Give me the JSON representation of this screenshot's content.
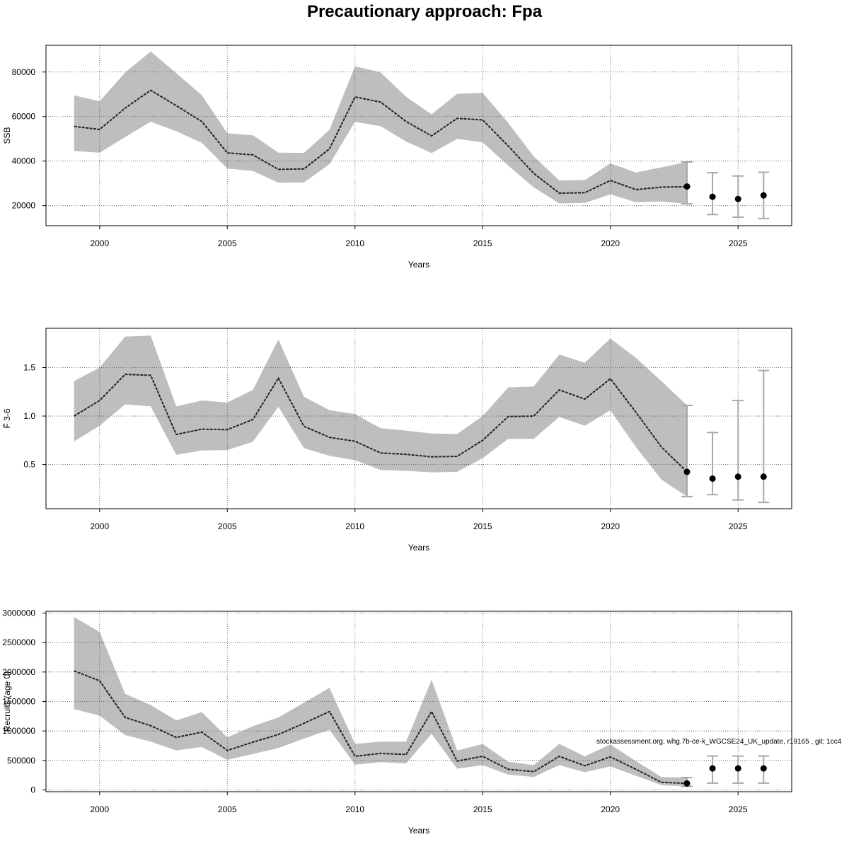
{
  "page_title": "Precautionary approach: Fpa",
  "footer_note": "stockassessment.org, whg.7b-ce-k_WGCSE24_UK_update, r19165 , git: 1cc4",
  "colors": {
    "band": "#bebebe",
    "line": "#222222",
    "grid": "#555555",
    "errorbar": "#a8a8a8",
    "point": "#000000"
  },
  "chart_data": [
    {
      "type": "line",
      "ylabel": "SSB",
      "xlabel": "Years",
      "x_ticks": [
        2000,
        2005,
        2010,
        2015,
        2020,
        2025
      ],
      "y_ticks": [
        20000,
        40000,
        60000,
        80000
      ],
      "y_tick_labels": [
        "20000",
        "40000",
        "60000",
        "80000"
      ],
      "xlim": [
        1997.9,
        2027.1
      ],
      "ylim": [
        11000,
        92000
      ],
      "grid": true,
      "x": [
        1999,
        2000,
        2001,
        2002,
        2003,
        2004,
        2005,
        2006,
        2007,
        2008,
        2009,
        2010,
        2011,
        2012,
        2013,
        2014,
        2015,
        2016,
        2017,
        2018,
        2019,
        2020,
        2021,
        2022,
        2023
      ],
      "estimate": [
        55600,
        54200,
        63800,
        71800,
        64900,
        57800,
        43700,
        42800,
        36300,
        36500,
        45500,
        68800,
        66500,
        57800,
        51300,
        59200,
        58500,
        46800,
        34500,
        25600,
        25800,
        31300,
        27200,
        28300,
        28500
      ],
      "lower": [
        44500,
        43800,
        50800,
        57700,
        53400,
        48200,
        36700,
        35600,
        30300,
        30400,
        38600,
        57600,
        55700,
        48800,
        43600,
        50000,
        48400,
        38000,
        28200,
        21000,
        21200,
        25100,
        21500,
        21900,
        20800
      ],
      "upper": [
        69500,
        66800,
        79800,
        89200,
        79500,
        69600,
        52500,
        51600,
        43800,
        43700,
        54000,
        82600,
        79800,
        68900,
        61000,
        70200,
        70600,
        57200,
        42100,
        31300,
        31500,
        39000,
        34900,
        37200,
        39600
      ],
      "forecast": {
        "x": [
          2024,
          2025,
          2026
        ],
        "estimate": [
          24000,
          23000,
          24600
        ],
        "lower": [
          16000,
          14800,
          14200
        ],
        "upper": [
          34800,
          33300,
          35000
        ]
      },
      "last_point": {
        "x": 2023,
        "value": 28600
      }
    },
    {
      "type": "line",
      "ylabel": "F̄ 3-6",
      "xlabel": "Years",
      "x_ticks": [
        2000,
        2005,
        2010,
        2015,
        2020,
        2025
      ],
      "y_ticks": [
        0.5,
        1.0,
        1.5
      ],
      "y_tick_labels": [
        "0.5",
        "1.0",
        "1.5"
      ],
      "xlim": [
        1997.9,
        2027.1
      ],
      "ylim": [
        0.045,
        1.905
      ],
      "grid": true,
      "x": [
        1999,
        2000,
        2001,
        2002,
        2003,
        2004,
        2005,
        2006,
        2007,
        2008,
        2009,
        2010,
        2011,
        2012,
        2013,
        2014,
        2015,
        2016,
        2017,
        2018,
        2019,
        2020,
        2021,
        2022,
        2023
      ],
      "estimate": [
        1.0,
        1.16,
        1.43,
        1.42,
        0.81,
        0.865,
        0.86,
        0.965,
        1.39,
        0.895,
        0.78,
        0.74,
        0.62,
        0.605,
        0.58,
        0.585,
        0.75,
        0.995,
        1.0,
        1.27,
        1.175,
        1.385,
        1.04,
        0.68,
        0.425
      ],
      "lower": [
        0.74,
        0.9,
        1.12,
        1.1,
        0.6,
        0.645,
        0.65,
        0.735,
        1.095,
        0.67,
        0.59,
        0.545,
        0.445,
        0.435,
        0.42,
        0.425,
        0.565,
        0.765,
        0.765,
        0.99,
        0.9,
        1.06,
        0.68,
        0.345,
        0.17
      ],
      "upper": [
        1.36,
        1.5,
        1.82,
        1.83,
        1.1,
        1.16,
        1.14,
        1.27,
        1.79,
        1.2,
        1.06,
        1.02,
        0.875,
        0.85,
        0.82,
        0.815,
        1.0,
        1.295,
        1.305,
        1.635,
        1.55,
        1.8,
        1.6,
        1.36,
        1.11
      ],
      "forecast": {
        "x": [
          2024,
          2025,
          2026
        ],
        "estimate": [
          0.355,
          0.375,
          0.375
        ],
        "lower": [
          0.19,
          0.135,
          0.11
        ],
        "upper": [
          0.83,
          1.16,
          1.47
        ]
      },
      "last_point": {
        "x": 2023,
        "value": 0.425
      }
    },
    {
      "type": "line",
      "ylabel": "Recruits (age 0)",
      "xlabel": "Years",
      "x_ticks": [
        2000,
        2005,
        2010,
        2015,
        2020,
        2025
      ],
      "y_ticks": [
        0,
        500000,
        1000000,
        1500000,
        2000000,
        2500000,
        3000000
      ],
      "y_tick_labels": [
        "0",
        "500000",
        "1000000",
        "1500000",
        "2000000",
        "2500000",
        "3000000"
      ],
      "xlim": [
        1997.9,
        2027.1
      ],
      "ylim": [
        -30000,
        3030000
      ],
      "grid": true,
      "x": [
        1999,
        2000,
        2001,
        2002,
        2003,
        2004,
        2005,
        2006,
        2007,
        2008,
        2009,
        2010,
        2011,
        2012,
        2013,
        2014,
        2015,
        2016,
        2017,
        2018,
        2019,
        2020,
        2021,
        2022,
        2023
      ],
      "estimate": [
        2020000,
        1850000,
        1230000,
        1090000,
        890000,
        980000,
        670000,
        810000,
        940000,
        1130000,
        1330000,
        570000,
        620000,
        600000,
        1330000,
        490000,
        570000,
        350000,
        310000,
        570000,
        410000,
        560000,
        350000,
        130000,
        110000
      ],
      "lower": [
        1370000,
        1260000,
        930000,
        820000,
        670000,
        730000,
        510000,
        610000,
        710000,
        870000,
        1020000,
        430000,
        470000,
        450000,
        950000,
        360000,
        420000,
        260000,
        220000,
        420000,
        300000,
        400000,
        240000,
        80000,
        60000
      ],
      "upper": [
        2930000,
        2680000,
        1630000,
        1440000,
        1180000,
        1320000,
        890000,
        1080000,
        1230000,
        1480000,
        1730000,
        780000,
        820000,
        820000,
        1870000,
        670000,
        780000,
        480000,
        420000,
        780000,
        570000,
        770000,
        490000,
        220000,
        210000
      ],
      "forecast": {
        "x": [
          2024,
          2025,
          2026
        ],
        "estimate": [
          365000,
          365000,
          365000
        ],
        "lower": [
          115000,
          115000,
          115000
        ],
        "upper": [
          575000,
          575000,
          575000
        ]
      },
      "last_point": {
        "x": 2023,
        "value": 110000
      }
    }
  ]
}
